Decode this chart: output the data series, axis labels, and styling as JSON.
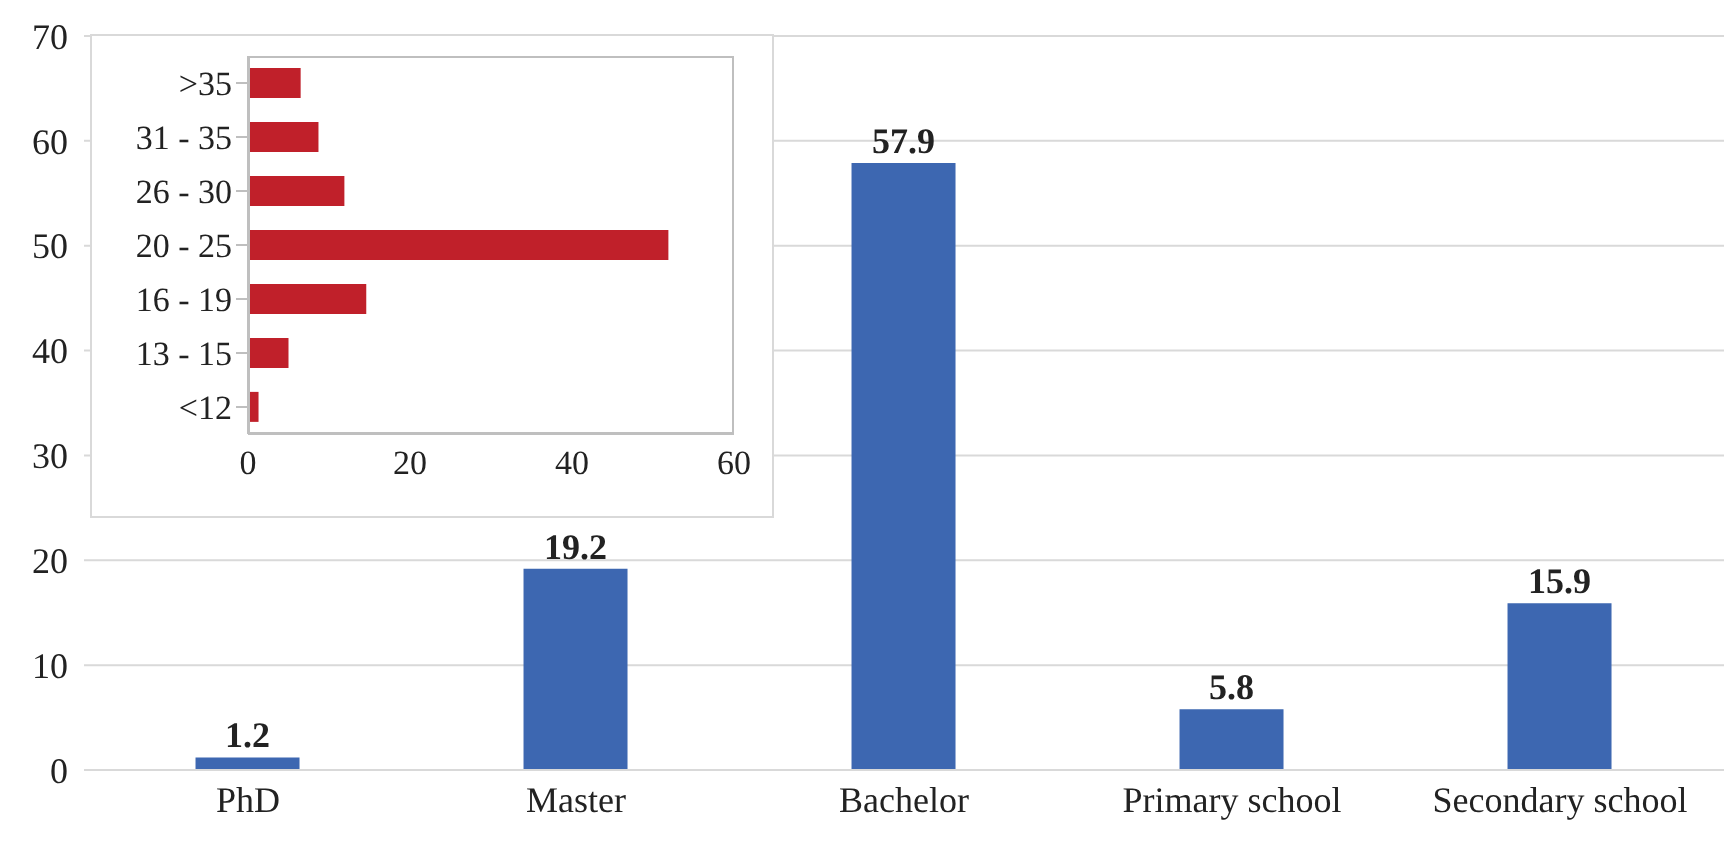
{
  "chart_data": [
    {
      "type": "bar",
      "categories": [
        "PhD",
        "Master",
        "Bachelor",
        "Primary school",
        "Secondary school"
      ],
      "values": [
        1.2,
        19.2,
        57.9,
        5.8,
        15.9
      ],
      "color": "#3d67b1",
      "ylim": [
        0,
        70
      ],
      "yticks": [
        0,
        10,
        20,
        30,
        40,
        50,
        60,
        70
      ],
      "grid": "y",
      "data_labels": true,
      "legend": false
    },
    {
      "type": "bar",
      "orientation": "horizontal",
      "categories": [
        ">35",
        "31 - 35",
        "26 - 30",
        "20 - 25",
        "16 - 19",
        "13 - 15",
        "<12"
      ],
      "values": [
        6.5,
        8.7,
        11.9,
        51.9,
        14.6,
        5.0,
        1.3
      ],
      "color": "#c0202a",
      "xlim": [
        0,
        60
      ],
      "xticks": [
        0,
        20,
        40,
        60
      ],
      "grid": false,
      "legend": false
    }
  ]
}
